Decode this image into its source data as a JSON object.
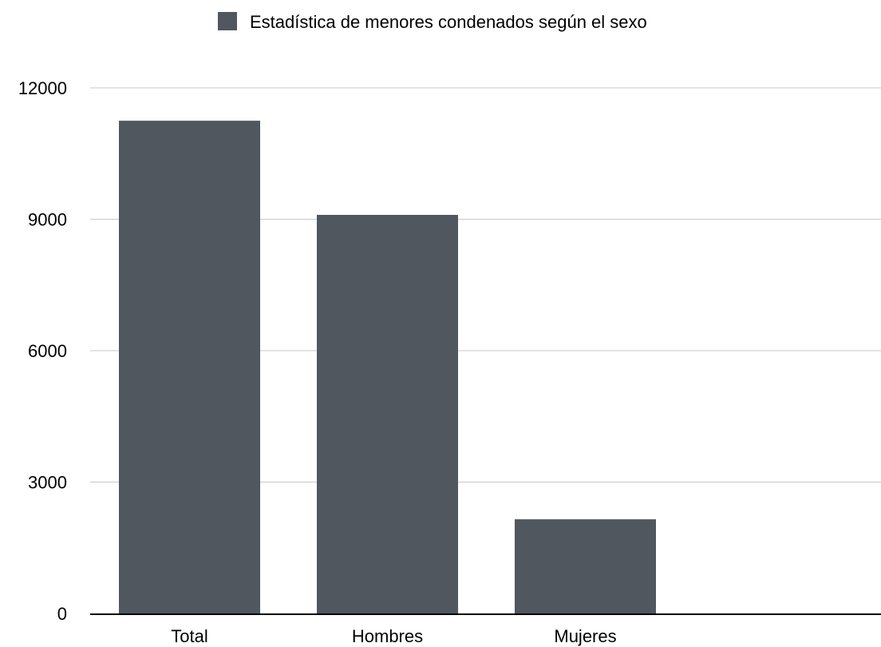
{
  "chart_data": {
    "type": "bar",
    "categories": [
      "Total",
      "Hombres",
      "Mujeres"
    ],
    "series": [
      {
        "name": "Estadística de menores condenados según el sexo",
        "values": [
          11250,
          9100,
          2150
        ]
      }
    ],
    "ylim": [
      0,
      12000
    ],
    "yticks": [
      0,
      3000,
      6000,
      9000,
      12000
    ],
    "grid": true,
    "legend": "top-center",
    "colors": {
      "bar": "#51575f",
      "grid": "#c8c8c8",
      "axis": "#000000"
    }
  }
}
